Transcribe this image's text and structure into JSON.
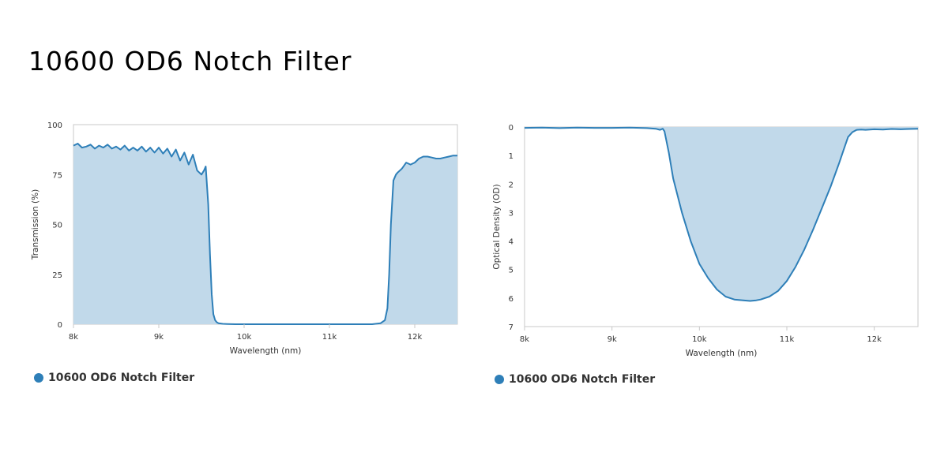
{
  "page": {
    "title": "10600 OD6 Notch Filter"
  },
  "colors": {
    "line": "#2e7fb8",
    "fill": "#c1d9ea",
    "frame": "#c8c8c8"
  },
  "chart_data": [
    {
      "type": "area",
      "xlabel": "Wavelength (nm)",
      "ylabel": "Transmission (%)",
      "xlim": [
        8000,
        12500
      ],
      "ylim": [
        0,
        100
      ],
      "x_ticks": [
        {
          "value": 8000,
          "label": "8k"
        },
        {
          "value": 9000,
          "label": "9k"
        },
        {
          "value": 10000,
          "label": "10k"
        },
        {
          "value": 11000,
          "label": "11k"
        },
        {
          "value": 12000,
          "label": "12k"
        }
      ],
      "y_ticks": [
        {
          "value": 0,
          "label": "0"
        },
        {
          "value": 25,
          "label": "25"
        },
        {
          "value": 50,
          "label": "50"
        },
        {
          "value": 75,
          "label": "75"
        },
        {
          "value": 100,
          "label": "100"
        }
      ],
      "legend_position": "bottom-left",
      "series": [
        {
          "name": "10600 OD6 Notch Filter",
          "x": [
            8000,
            8050,
            8100,
            8150,
            8200,
            8250,
            8300,
            8350,
            8400,
            8450,
            8500,
            8550,
            8600,
            8650,
            8700,
            8750,
            8800,
            8850,
            8900,
            8950,
            9000,
            9050,
            9100,
            9150,
            9200,
            9250,
            9300,
            9350,
            9400,
            9450,
            9500,
            9530,
            9550,
            9580,
            9600,
            9620,
            9640,
            9660,
            9680,
            9700,
            9750,
            9800,
            9900,
            10000,
            11000,
            11500,
            11600,
            11650,
            11680,
            11700,
            11720,
            11750,
            11780,
            11800,
            11850,
            11900,
            11950,
            12000,
            12050,
            12100,
            12150,
            12200,
            12250,
            12300,
            12350,
            12400,
            12450,
            12500
          ],
          "y": [
            89.5,
            90.5,
            88.5,
            89,
            90,
            88,
            89.5,
            88.5,
            90,
            88,
            89,
            87.5,
            89.5,
            87,
            88.5,
            87,
            89,
            86.5,
            88.5,
            86,
            88.5,
            85.5,
            88,
            84,
            87.5,
            82,
            86,
            80,
            85,
            77,
            75,
            77,
            79,
            60,
            35,
            15,
            5,
            2,
            1,
            0.5,
            0.2,
            0.1,
            0,
            0,
            0,
            0,
            0.5,
            2,
            8,
            25,
            50,
            72,
            75,
            76,
            78,
            81,
            80,
            81,
            83,
            84,
            84,
            83.5,
            83,
            83,
            83.5,
            84,
            84.5,
            84.5
          ]
        }
      ]
    },
    {
      "type": "area",
      "xlabel": "Wavelength (nm)",
      "ylabel": "Optical Density (OD)",
      "xlim": [
        8000,
        12500
      ],
      "ylim": [
        0,
        7
      ],
      "y_reversed": true,
      "x_ticks": [
        {
          "value": 8000,
          "label": "8k"
        },
        {
          "value": 9000,
          "label": "9k"
        },
        {
          "value": 10000,
          "label": "10k"
        },
        {
          "value": 11000,
          "label": "11k"
        },
        {
          "value": 12000,
          "label": "12k"
        }
      ],
      "y_ticks": [
        {
          "value": 0,
          "label": "0"
        },
        {
          "value": 1,
          "label": "1"
        },
        {
          "value": 2,
          "label": "2"
        },
        {
          "value": 3,
          "label": "3"
        },
        {
          "value": 4,
          "label": "4"
        },
        {
          "value": 5,
          "label": "5"
        },
        {
          "value": 6,
          "label": "6"
        },
        {
          "value": 7,
          "label": "7"
        }
      ],
      "legend_position": "bottom-left",
      "series": [
        {
          "name": "10600 OD6 Notch Filter",
          "x": [
            8000,
            8200,
            8400,
            8600,
            8800,
            9000,
            9200,
            9400,
            9500,
            9550,
            9580,
            9600,
            9650,
            9700,
            9800,
            9900,
            10000,
            10100,
            10200,
            10300,
            10400,
            10500,
            10580,
            10650,
            10700,
            10800,
            10900,
            11000,
            11100,
            11200,
            11300,
            11400,
            11500,
            11600,
            11650,
            11700,
            11750,
            11780,
            11800,
            11850,
            11900,
            12000,
            12100,
            12200,
            12300,
            12400,
            12500
          ],
          "y": [
            0.03,
            0.02,
            0.04,
            0.02,
            0.03,
            0.03,
            0.02,
            0.04,
            0.06,
            0.1,
            0.06,
            0.15,
            0.9,
            1.8,
            3.0,
            4.0,
            4.8,
            5.3,
            5.7,
            5.95,
            6.05,
            6.08,
            6.1,
            6.08,
            6.05,
            5.95,
            5.75,
            5.4,
            4.9,
            4.3,
            3.6,
            2.85,
            2.1,
            1.25,
            0.8,
            0.35,
            0.18,
            0.13,
            0.1,
            0.09,
            0.1,
            0.08,
            0.09,
            0.07,
            0.08,
            0.07,
            0.06
          ]
        }
      ]
    }
  ]
}
